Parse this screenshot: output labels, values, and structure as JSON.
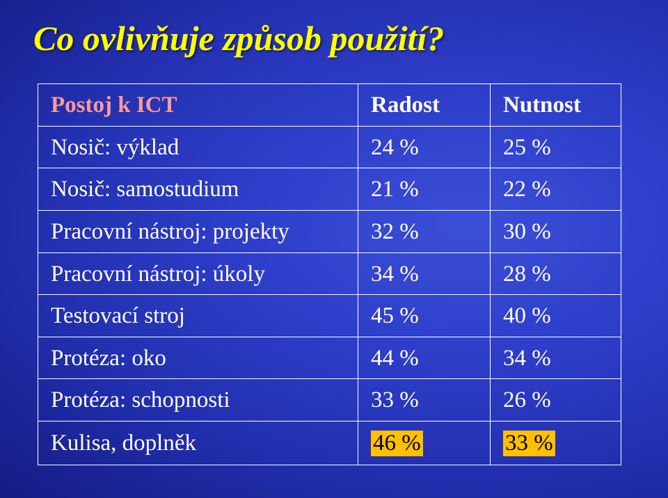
{
  "title": "Co ovlivňuje způsob použití?",
  "table": {
    "header_left": "Postoj k ICT",
    "col1": "Radost",
    "col2": "Nutnost",
    "rows": [
      {
        "label": "Nosič: výklad",
        "v1": "24 %",
        "v2": "25 %"
      },
      {
        "label": "Nosič: samostudium",
        "v1": "21 %",
        "v2": "22 %"
      },
      {
        "label": "Pracovní nástroj: projekty",
        "v1": "32 %",
        "v2": "30 %"
      },
      {
        "label": "Pracovní nástroj: úkoly",
        "v1": "34 %",
        "v2": "28 %"
      },
      {
        "label": "Testovací stroj",
        "v1": "45 %",
        "v2": "40 %"
      },
      {
        "label": "Protéza: oko",
        "v1": "44 %",
        "v2": "34 %"
      },
      {
        "label": "Protéza: schopnosti",
        "v1": "33 %",
        "v2": "26 %"
      },
      {
        "label": "Kulisa, doplněk",
        "v1": "46 %",
        "v2": "33 %"
      }
    ],
    "highlight_row_index": 7,
    "colors": {
      "title_color": "#ffff00",
      "header_left_color": "#ff9999",
      "text_color": "#ffffff",
      "border_color": "#ffffff",
      "highlight_bg": "#ffc000",
      "highlight_text": "#000000",
      "background_gradient": [
        "#3c4fd8",
        "#2330b0",
        "#0b1262"
      ]
    },
    "font": {
      "family": "Times New Roman",
      "title_size_pt": 38,
      "cell_size_pt": 25
    }
  }
}
